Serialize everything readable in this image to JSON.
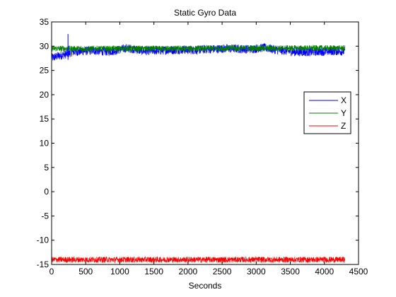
{
  "chart_data": {
    "type": "line",
    "title": "Static Gyro Data",
    "xlabel": "Seconds",
    "ylabel": "",
    "xlim": [
      0,
      4500
    ],
    "ylim": [
      -15,
      35
    ],
    "xticks": [
      0,
      500,
      1000,
      1500,
      2000,
      2500,
      3000,
      3500,
      4000,
      4500
    ],
    "yticks": [
      -15,
      -10,
      -5,
      0,
      5,
      10,
      15,
      20,
      25,
      30,
      35
    ],
    "grid": false,
    "legend": {
      "placement": "right",
      "entries": [
        "X",
        "Y",
        "Z"
      ]
    },
    "series": [
      {
        "name": "X",
        "color": "#0000ff",
        "x": [
          0,
          100,
          200,
          250,
          300,
          400,
          500,
          600,
          700,
          800,
          900,
          1000,
          1100,
          1200,
          1300,
          1400,
          1500,
          1600,
          1700,
          1800,
          1900,
          2000,
          2100,
          2200,
          2300,
          2400,
          2500,
          2600,
          2700,
          2800,
          2900,
          3000,
          3100,
          3200,
          3300,
          3400,
          3500,
          3600,
          3700,
          3800,
          3900,
          4000,
          4100,
          4200,
          4300
        ],
        "y": [
          27.6,
          28.0,
          28.3,
          28.5,
          28.8,
          28.9,
          29.0,
          29.1,
          29.0,
          28.9,
          29.0,
          29.3,
          29.6,
          29.4,
          29.1,
          29.0,
          29.1,
          29.1,
          29.2,
          29.2,
          29.3,
          29.2,
          29.2,
          29.3,
          29.4,
          29.4,
          29.5,
          29.5,
          29.5,
          29.4,
          29.4,
          29.5,
          29.7,
          29.5,
          29.2,
          29.1,
          28.9,
          28.8,
          28.8,
          28.8,
          28.9,
          28.9,
          29.0,
          29.0,
          28.9
        ],
        "noise": 0.9
      },
      {
        "name": "Y",
        "color": "#007f00",
        "x": [
          0,
          500,
          1000,
          1500,
          2000,
          2500,
          3000,
          3500,
          4000,
          4300
        ],
        "y": [
          29.5,
          29.5,
          29.5,
          29.5,
          29.5,
          29.6,
          29.6,
          29.6,
          29.6,
          29.6
        ],
        "noise": 0.6
      },
      {
        "name": "Z",
        "color": "#ff0000",
        "x": [
          0,
          500,
          1000,
          1500,
          2000,
          2500,
          3000,
          3500,
          4000,
          4300
        ],
        "y": [
          -14.0,
          -14.0,
          -14.0,
          -14.0,
          -14.0,
          -14.0,
          -14.0,
          -14.0,
          -14.0,
          -14.0
        ],
        "noise": 0.6
      }
    ],
    "annotations": [
      {
        "label": "spike",
        "x": 240,
        "y_min": 27.2,
        "y_max": 32.5,
        "series": "X"
      }
    ]
  }
}
